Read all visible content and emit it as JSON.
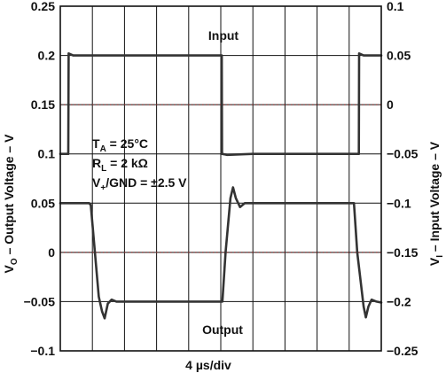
{
  "chart_data": {
    "type": "line",
    "x_label": "4 µs/div",
    "x_divisions": 10,
    "left_axis": {
      "label": {
        "main": "V",
        "sub": "O",
        "rest": " – Output Voltage – V"
      },
      "range": [
        -0.1,
        0.25
      ],
      "ticks": [
        "0.25",
        "0.2",
        "0.15",
        "0.1",
        "0.05",
        "0",
        "−0.05",
        "−0.1"
      ],
      "tick_values": [
        0.25,
        0.2,
        0.15,
        0.1,
        0.05,
        0,
        -0.05,
        -0.1
      ]
    },
    "right_axis": {
      "label": {
        "main": "V",
        "sub": "I",
        "rest": " – Input Voltage – V"
      },
      "range": [
        -0.25,
        0.1
      ],
      "ticks": [
        "0.1",
        "0.05",
        "0",
        "−0.05",
        "−0.1",
        "−0.15",
        "−0.2",
        "−0.25"
      ],
      "tick_values": [
        0.1,
        0.05,
        0,
        -0.05,
        -0.1,
        -0.15,
        -0.2,
        -0.25
      ]
    },
    "dotted_zero_lines": [
      {
        "axis": "right",
        "value": 0
      },
      {
        "axis": "left",
        "value": 0
      }
    ],
    "series": [
      {
        "name": "Input",
        "axis": "right",
        "points": [
          [
            0,
            -0.05
          ],
          [
            0.25,
            -0.05
          ],
          [
            0.26,
            0.052
          ],
          [
            0.4,
            0.05
          ],
          [
            1,
            0.05
          ],
          [
            2,
            0.05
          ],
          [
            3,
            0.05
          ],
          [
            4,
            0.05
          ],
          [
            5,
            0.05
          ],
          [
            5.03,
            0.05
          ],
          [
            5.04,
            -0.05
          ],
          [
            5.2,
            -0.051
          ],
          [
            6,
            -0.05
          ],
          [
            7,
            -0.05
          ],
          [
            8,
            -0.05
          ],
          [
            9,
            -0.05
          ],
          [
            9.3,
            -0.05
          ],
          [
            9.31,
            0.052
          ],
          [
            9.45,
            0.05
          ],
          [
            10,
            0.05
          ]
        ]
      },
      {
        "name": "Output",
        "axis": "left",
        "points": [
          [
            0,
            0.05
          ],
          [
            0.9,
            0.05
          ],
          [
            0.95,
            0.048
          ],
          [
            1.2,
            -0.045
          ],
          [
            1.3,
            -0.06
          ],
          [
            1.38,
            -0.067
          ],
          [
            1.48,
            -0.052
          ],
          [
            1.6,
            -0.048
          ],
          [
            1.75,
            -0.05
          ],
          [
            2.5,
            -0.05
          ],
          [
            4,
            -0.05
          ],
          [
            5.05,
            -0.05
          ],
          [
            5.15,
            0.0
          ],
          [
            5.3,
            0.055
          ],
          [
            5.38,
            0.066
          ],
          [
            5.47,
            0.055
          ],
          [
            5.6,
            0.046
          ],
          [
            5.75,
            0.05
          ],
          [
            7,
            0.05
          ],
          [
            9.15,
            0.05
          ],
          [
            9.25,
            0.0
          ],
          [
            9.45,
            -0.055
          ],
          [
            9.52,
            -0.066
          ],
          [
            9.6,
            -0.055
          ],
          [
            9.7,
            -0.048
          ],
          [
            9.85,
            -0.05
          ],
          [
            10,
            -0.051
          ]
        ]
      }
    ],
    "annotations": {
      "input_label": "Input",
      "output_label": "Output"
    },
    "conditions": {
      "line1": {
        "main": "T",
        "sub": "A",
        "rest": " = 25°C"
      },
      "line2": {
        "main": "R",
        "sub": "L",
        "rest": " = 2 kΩ"
      },
      "line3": {
        "main": "V",
        "sub": "+",
        "rest": "/GND = ±2.5 V"
      }
    },
    "grid": true,
    "colors": {
      "trace": "#333333",
      "grid": "#111111",
      "zero_line": "#8a2b2b"
    }
  }
}
